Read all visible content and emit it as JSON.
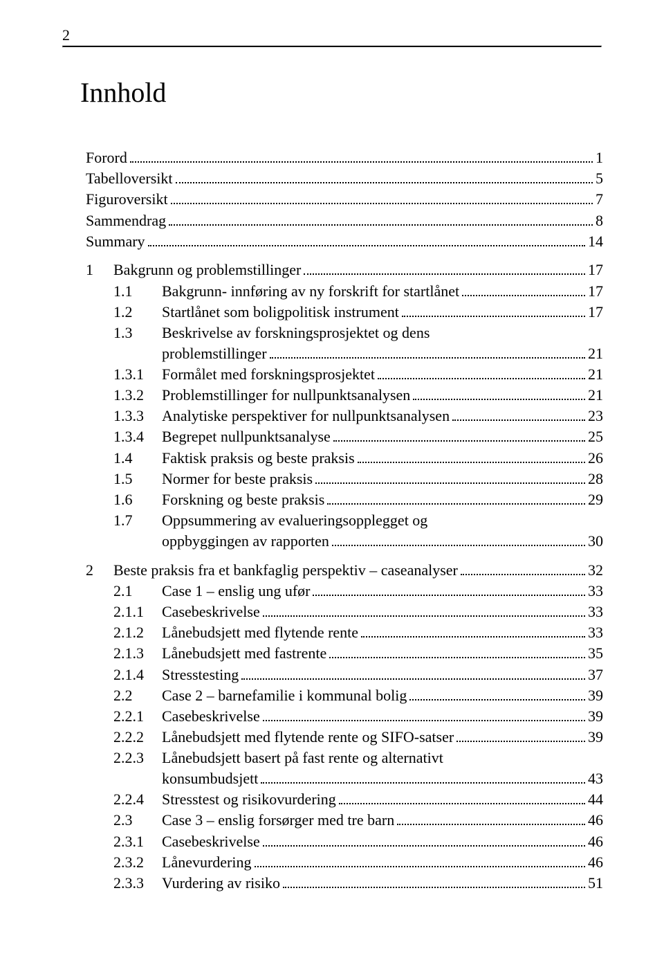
{
  "page_number": "2",
  "title": "Innhold",
  "front_matter": [
    {
      "label": "Forord",
      "page": "1"
    },
    {
      "label": "Tabelloversikt",
      "page": "5"
    },
    {
      "label": "Figuroversikt",
      "page": "7"
    },
    {
      "label": "Sammendrag",
      "page": "8"
    },
    {
      "label": "Summary",
      "page": "14"
    }
  ],
  "chapter1": {
    "num": "1",
    "label": "Bakgrunn og problemstillinger",
    "page": "17",
    "items": [
      {
        "num": "1.1",
        "label": "Bakgrunn- innføring av ny forskrift for startlånet",
        "page": "17"
      },
      {
        "num": "1.2",
        "label": "Startlånet som boligpolitisk instrument",
        "page": "17"
      },
      {
        "num": "1.3",
        "label1": "Beskrivelse av forskningsprosjektet og dens",
        "label2": "problemstillinger",
        "page": "21",
        "multiline": true
      },
      {
        "num": "1.3.1",
        "label": "Formålet med forskningsprosjektet",
        "page": "21"
      },
      {
        "num": "1.3.2",
        "label": "Problemstillinger for nullpunktsanalysen",
        "page": "21"
      },
      {
        "num": "1.3.3",
        "label": "Analytiske perspektiver for nullpunktsanalysen",
        "page": "23"
      },
      {
        "num": "1.3.4",
        "label": "Begrepet nullpunktsanalyse",
        "page": "25"
      },
      {
        "num": "1.4",
        "label": "Faktisk praksis og beste praksis",
        "page": "26"
      },
      {
        "num": "1.5",
        "label": "Normer for beste praksis",
        "page": "28"
      },
      {
        "num": "1.6",
        "label": "Forskning og beste praksis",
        "page": "29"
      },
      {
        "num": "1.7",
        "label1": "Oppsummering av evalueringsopplegget og",
        "label2": "oppbyggingen av rapporten",
        "page": "30",
        "multiline": true
      }
    ]
  },
  "chapter2": {
    "num": "2",
    "label": "Beste praksis fra et bankfaglig perspektiv – caseanalyser",
    "page": "32",
    "items": [
      {
        "num": "2.1",
        "label": "Case 1 – enslig ung ufør",
        "page": "33"
      },
      {
        "num": "2.1.1",
        "label": "Casebeskrivelse",
        "page": "33"
      },
      {
        "num": "2.1.2",
        "label": "Lånebudsjett med flytende rente",
        "page": "33"
      },
      {
        "num": "2.1.3",
        "label": "Lånebudsjett med fastrente",
        "page": "35"
      },
      {
        "num": "2.1.4",
        "label": "Stresstesting",
        "page": "37"
      },
      {
        "num": "2.2",
        "label": "Case 2 – barnefamilie i kommunal bolig",
        "page": "39"
      },
      {
        "num": "2.2.1",
        "label": "Casebeskrivelse",
        "page": "39"
      },
      {
        "num": "2.2.2",
        "label": "Lånebudsjett med flytende rente og SIFO-satser",
        "page": "39"
      },
      {
        "num": "2.2.3",
        "label1": "Lånebudsjett basert på fast rente og alternativt",
        "label2": "konsumbudsjett",
        "page": "43",
        "multiline": true
      },
      {
        "num": "2.2.4",
        "label": "Stresstest og risikovurdering",
        "page": "44"
      },
      {
        "num": "2.3",
        "label": "Case 3 – enslig forsørger med tre barn",
        "page": "46"
      },
      {
        "num": "2.3.1",
        "label": "Casebeskrivelse",
        "page": "46"
      },
      {
        "num": "2.3.2",
        "label": "Lånevurdering",
        "page": "46"
      },
      {
        "num": "2.3.3",
        "label": "Vurdering av risiko",
        "page": "51"
      }
    ]
  },
  "style": {
    "bg": "#ffffff",
    "text_color": "#000000",
    "title_fontsize": 40,
    "body_fontsize": 22,
    "font_family": "Garamond, Times New Roman, serif"
  }
}
